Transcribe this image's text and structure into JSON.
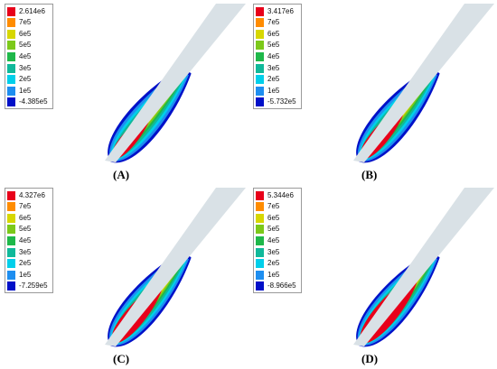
{
  "panels": [
    {
      "id": "A",
      "caption": "(A)",
      "legend": [
        "2.614e6",
        "7e5",
        "6e5",
        "5e5",
        "4e5",
        "3e5",
        "2e5",
        "1e5",
        "-4.385e5"
      ],
      "hot_fraction": 0.35
    },
    {
      "id": "B",
      "caption": "(B)",
      "legend": [
        "3.417e6",
        "7e5",
        "6e5",
        "5e5",
        "4e5",
        "3e5",
        "2e5",
        "1e5",
        "-5.732e5"
      ],
      "hot_fraction": 0.5
    },
    {
      "id": "C",
      "caption": "(C)",
      "legend": [
        "4.327e6",
        "7e5",
        "6e5",
        "5e5",
        "4e5",
        "3e5",
        "2e5",
        "1e5",
        "-7.259e5"
      ],
      "hot_fraction": 0.68
    },
    {
      "id": "D",
      "caption": "(D)",
      "legend": [
        "5.344e6",
        "7e5",
        "6e5",
        "5e5",
        "4e5",
        "3e5",
        "2e5",
        "1e5",
        "-8.966e5"
      ],
      "hot_fraction": 0.85
    }
  ],
  "colormap": [
    "#e8001a",
    "#ff8c00",
    "#d7d700",
    "#7cc91a",
    "#1fb84a",
    "#10b99a",
    "#00cfea",
    "#1e8ef0",
    "#0010c8"
  ],
  "sheet_color": "#d9e1e6"
}
